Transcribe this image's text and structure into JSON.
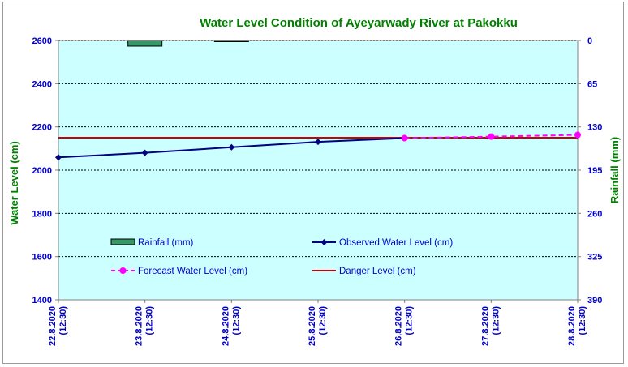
{
  "chart_data": {
    "type": "line",
    "title": "Water Level Condition of Ayeyarwady River at Pakokku",
    "ylabel": "Water Level (cm)",
    "y2label": "Rainfall (mm)",
    "ylim": [
      1400,
      2600
    ],
    "y2lim": [
      0,
      390
    ],
    "y2_inverted": true,
    "yticks": [
      "1400",
      "1600",
      "1800",
      "2000",
      "2200",
      "2400",
      "2600"
    ],
    "y2ticks": [
      "0",
      "65",
      "130",
      "195",
      "260",
      "325",
      "390"
    ],
    "categories": [
      [
        "22.8.2020",
        "(12:30)"
      ],
      [
        "23.8.2020",
        "(12:30)"
      ],
      [
        "24.8.2020",
        "(12:30)"
      ],
      [
        "25.8.2020",
        "(12:30)"
      ],
      [
        "26.8.2020",
        "(12:30)"
      ],
      [
        "27.8.2020",
        "(12:30)"
      ],
      [
        "28.8.2020",
        "(12:30)"
      ]
    ],
    "grid": true,
    "legend_placement": "inside-lower",
    "series": [
      {
        "name": "Rainfall (mm)",
        "kind": "bar",
        "axis": "y2",
        "color": "#339966",
        "values": [
          0,
          8.5,
          0.4,
          0,
          0,
          0,
          0
        ]
      },
      {
        "name": "Observed Water Level (cm)",
        "kind": "line",
        "axis": "y",
        "color": "#000080",
        "marker": "diamond",
        "values": [
          2059,
          2080,
          2106,
          2131,
          2148,
          null,
          null
        ]
      },
      {
        "name": "Forecast Water Level (cm)",
        "kind": "line-dashed",
        "axis": "y",
        "color": "#ff00ff",
        "marker": "circle",
        "values": [
          null,
          null,
          null,
          null,
          2148,
          2155,
          2163
        ]
      },
      {
        "name": "Danger Level (cm)",
        "kind": "hline",
        "axis": "y",
        "color": "#cc0000",
        "value": 2150
      }
    ]
  },
  "colors": {
    "plot_background": "#ccffff",
    "axis_text": "#0000cc",
    "title_text": "#008000",
    "y2_label_text": "#008000",
    "y_label_text": "#008000"
  }
}
